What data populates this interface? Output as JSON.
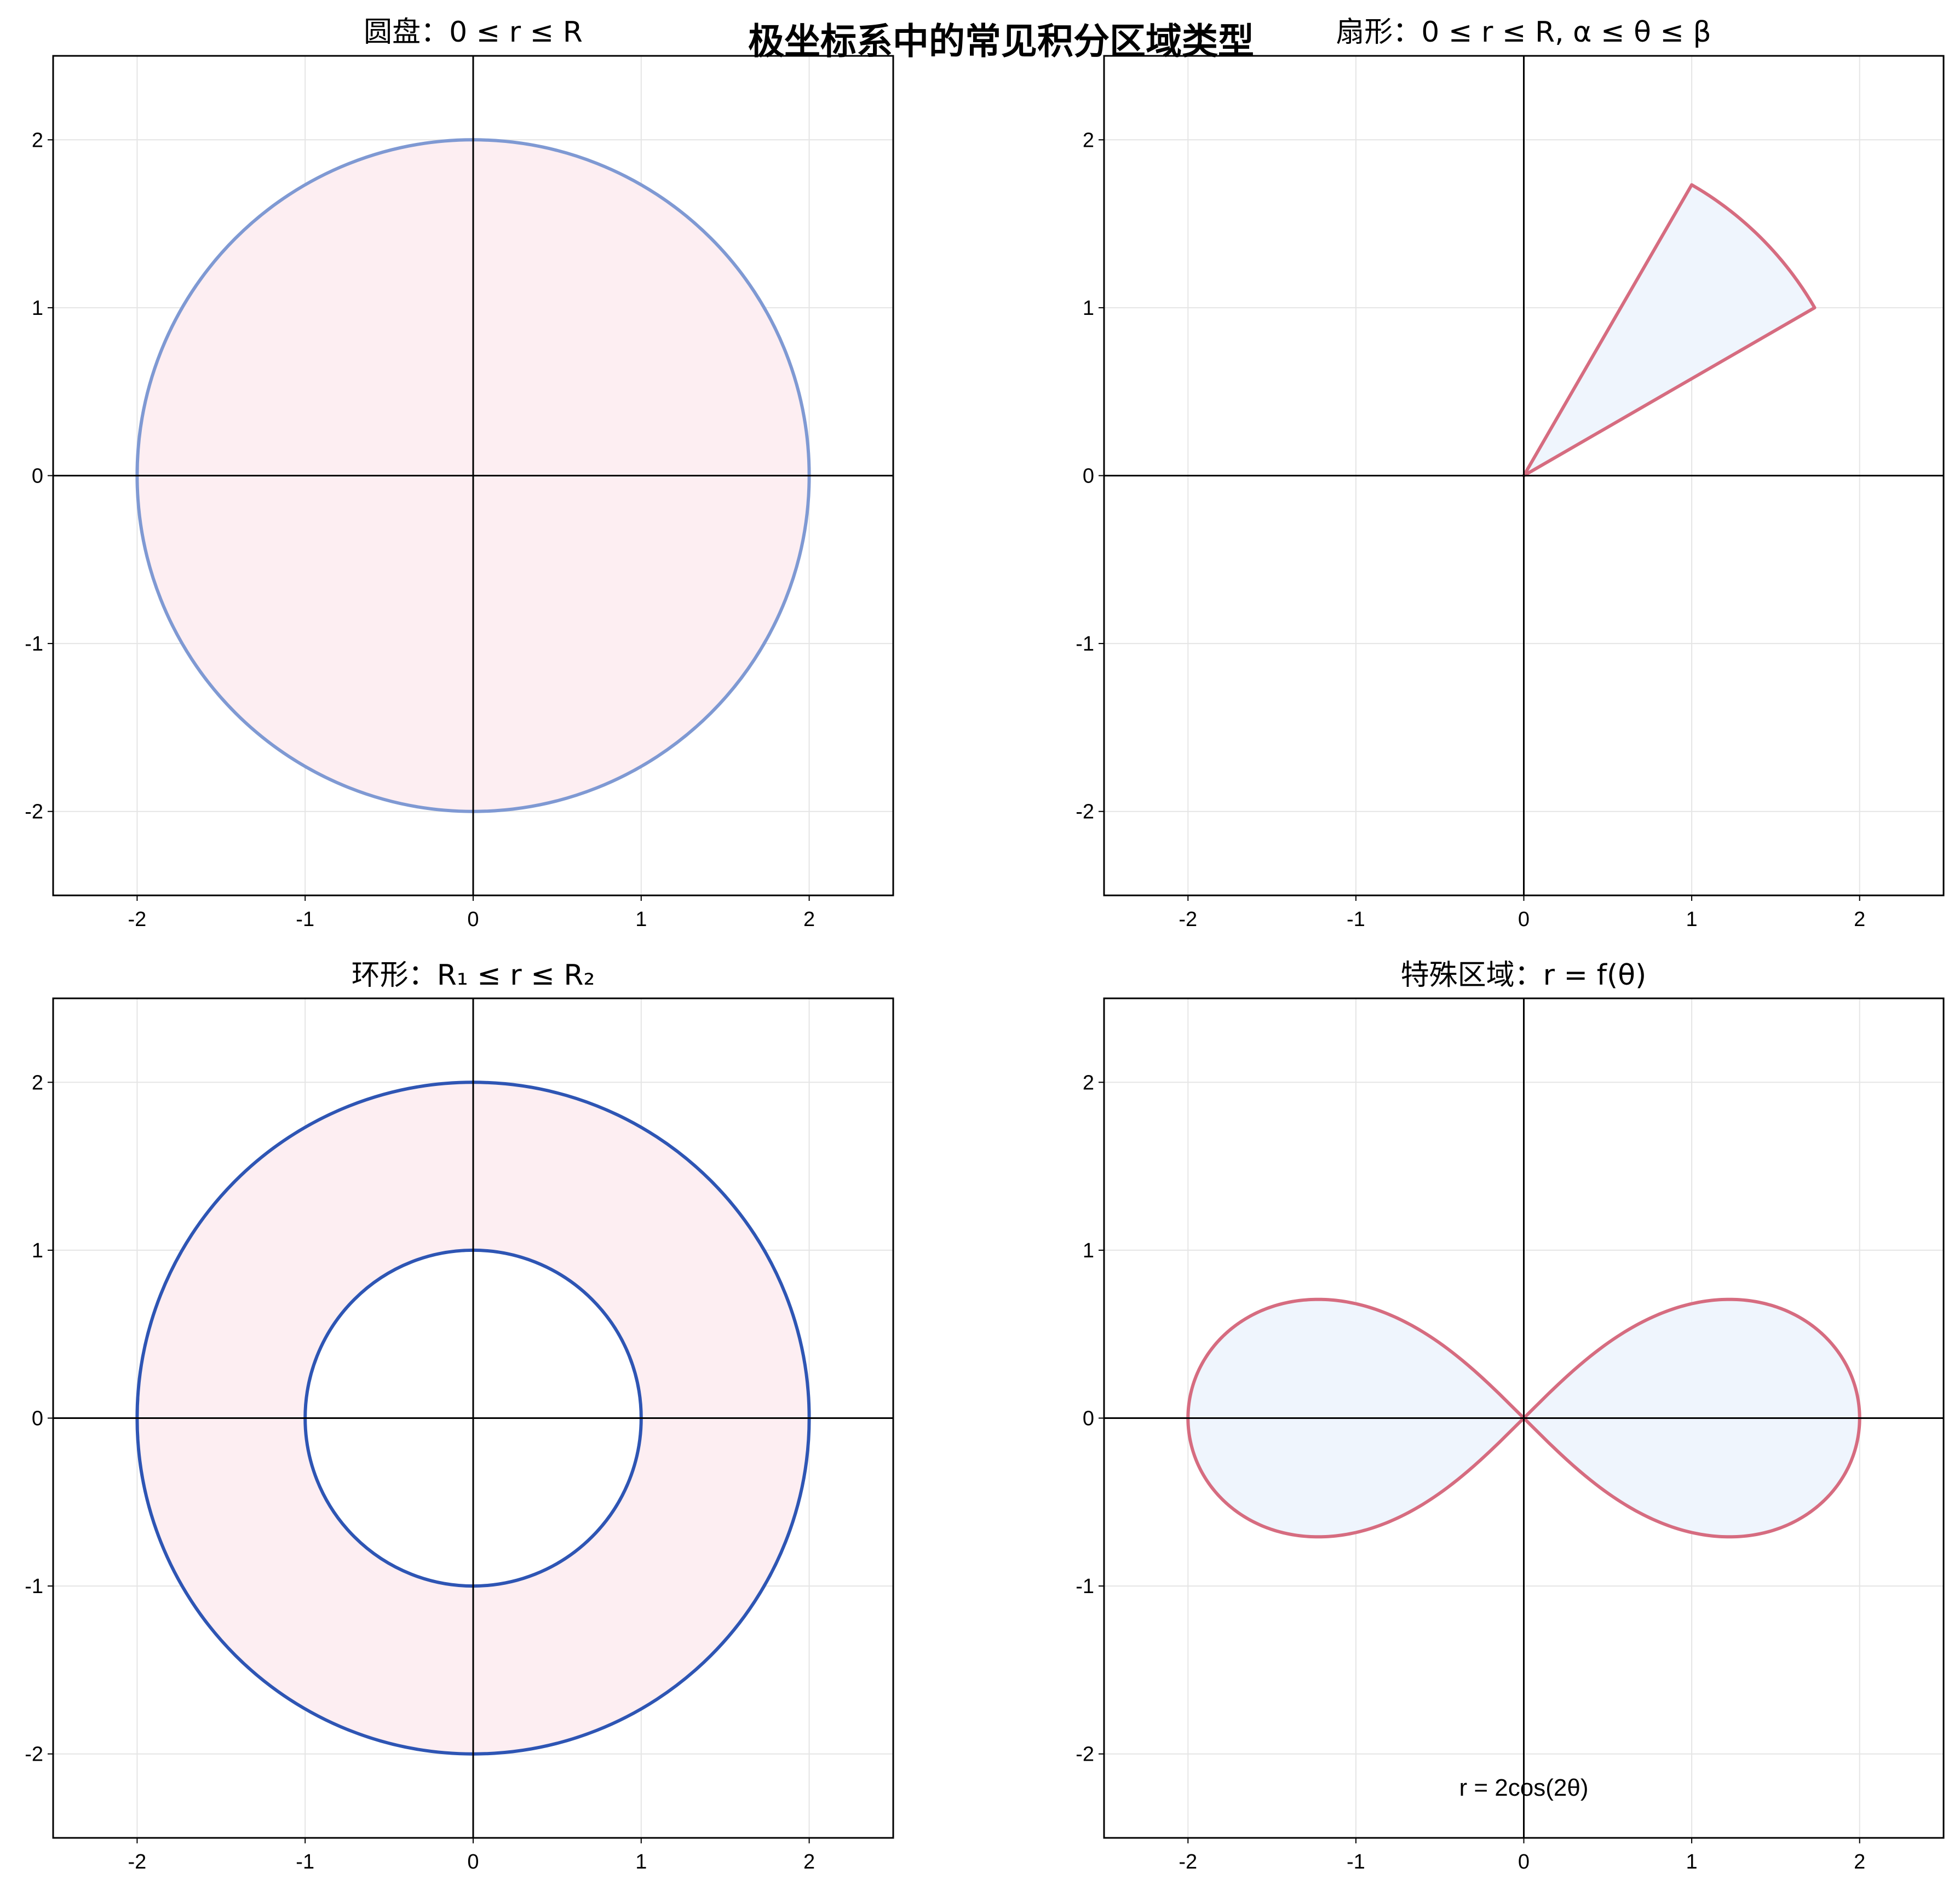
{
  "figure": {
    "suptitle": "极坐标系中的常见积分区域类型",
    "colors": {
      "pink_fill": "#fdeef2",
      "blue_fill": "#eff5fd",
      "soft_blue_line": "#7f99d3",
      "strong_blue_line": "#2e55b4",
      "red_line": "#d66c80",
      "grid": "#e5e5e5",
      "axis": "#000000"
    }
  },
  "chart_data": [
    {
      "type": "area",
      "title": "圆盘：0 ≤ r ≤ R",
      "region": "disk",
      "R": 2,
      "xlim": [
        -2.5,
        2.5
      ],
      "ylim": [
        -2.5,
        2.5
      ],
      "xticks": [
        -2,
        -1,
        0,
        1,
        2
      ],
      "yticks": [
        -2,
        -1,
        0,
        1,
        2
      ],
      "xticklabels": [
        "-2",
        "-1",
        "0",
        "1",
        "2"
      ],
      "yticklabels": [
        "-2",
        "-1",
        "0",
        "1",
        "2"
      ],
      "grid": true,
      "fill_color": "#fdeef2",
      "line_color": "#7f99d3"
    },
    {
      "type": "area",
      "title": "扇形：0 ≤ r ≤ R, α ≤ θ ≤ β",
      "region": "sector",
      "R": 2,
      "alpha_deg": 30,
      "beta_deg": 60,
      "xlim": [
        -2.5,
        2.5
      ],
      "ylim": [
        -2.5,
        2.5
      ],
      "xticks": [
        -2,
        -1,
        0,
        1,
        2
      ],
      "yticks": [
        -2,
        -1,
        0,
        1,
        2
      ],
      "xticklabels": [
        "-2",
        "-1",
        "0",
        "1",
        "2"
      ],
      "yticklabels": [
        "-2",
        "-1",
        "0",
        "1",
        "2"
      ],
      "grid": true,
      "fill_color": "#eff5fd",
      "line_color": "#d66c80"
    },
    {
      "type": "area",
      "title": "环形：R₁ ≤ r ≤ R₂",
      "region": "annulus",
      "R1": 1,
      "R2": 2,
      "xlim": [
        -2.5,
        2.5
      ],
      "ylim": [
        -2.5,
        2.5
      ],
      "xticks": [
        -2,
        -1,
        0,
        1,
        2
      ],
      "yticks": [
        -2,
        -1,
        0,
        1,
        2
      ],
      "xticklabels": [
        "-2",
        "-1",
        "0",
        "1",
        "2"
      ],
      "yticklabels": [
        "-2",
        "-1",
        "0",
        "1",
        "2"
      ],
      "grid": true,
      "fill_color": "#fdeef2",
      "line_color": "#2e55b4"
    },
    {
      "type": "area",
      "title": "特殊区域：r = f(θ)",
      "region": "lemniscate",
      "annotation": "r = 2cos(2θ)",
      "annotation_x": 0,
      "annotation_y": -2.2,
      "xlim": [
        -2.5,
        2.5
      ],
      "ylim": [
        -2.5,
        2.5
      ],
      "xticks": [
        -2,
        -1,
        0,
        1,
        2
      ],
      "yticks": [
        -2,
        -1,
        0,
        1,
        2
      ],
      "xticklabels": [
        "-2",
        "-1",
        "0",
        "1",
        "2"
      ],
      "yticklabels": [
        "-2",
        "-1",
        "0",
        "1",
        "2"
      ],
      "grid": true,
      "fill_color": "#eff5fd",
      "line_color": "#d66c80"
    }
  ]
}
